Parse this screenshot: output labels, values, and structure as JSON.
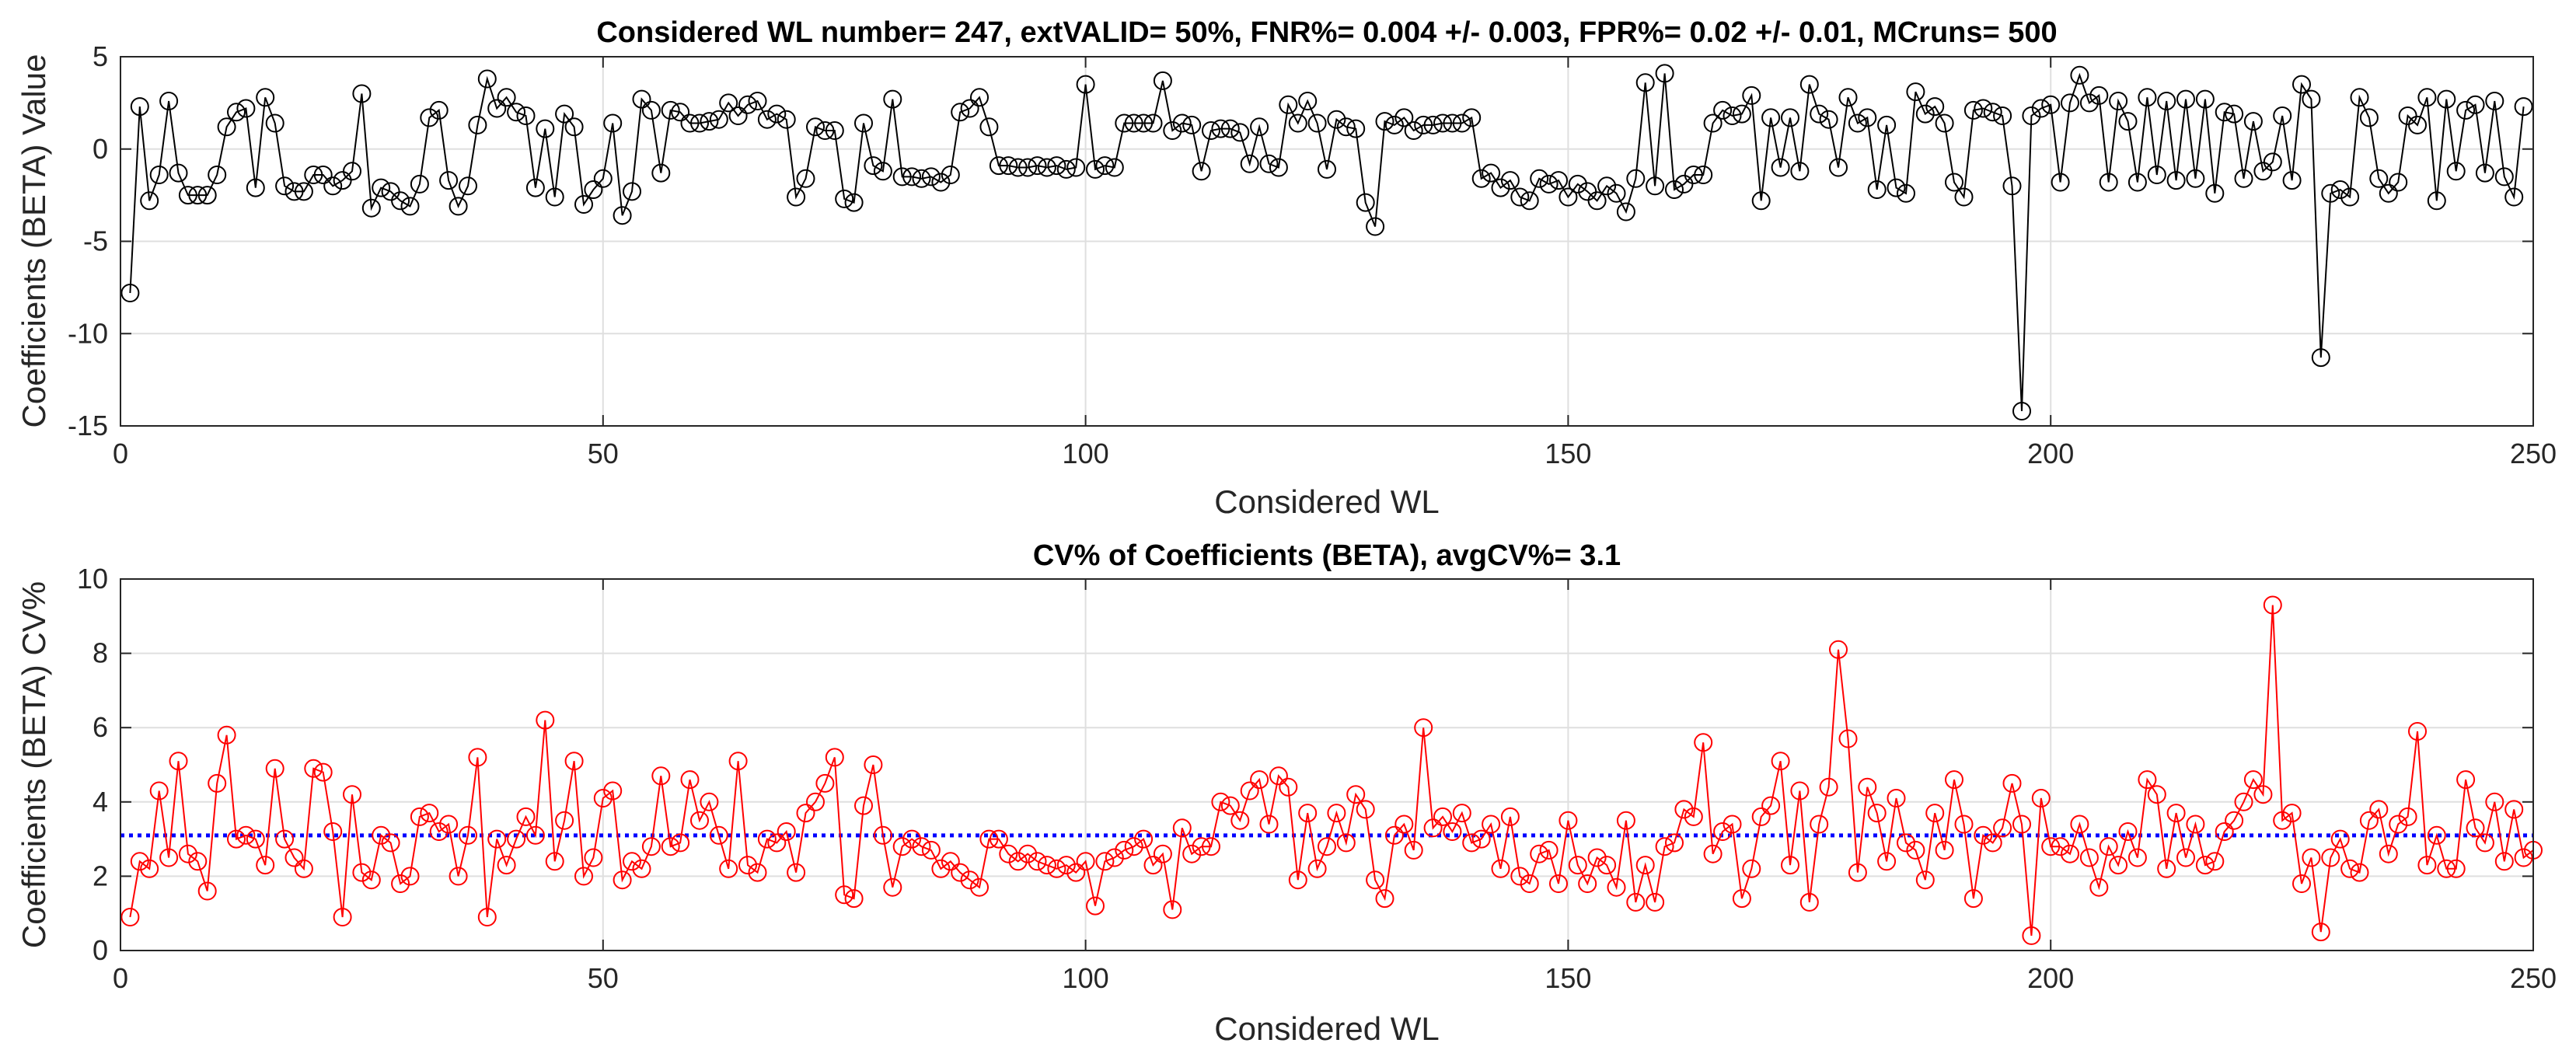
{
  "chart_data": [
    {
      "type": "line",
      "title": "Considered WL number= 247, extVALID= 50%, FNR%= 0.004 +/- 0.003, FPR%= 0.02 +/- 0.01, MCruns= 500",
      "xlabel": "Considered WL",
      "ylabel": "Coefficients (BETA) Value",
      "xlim": [
        0,
        250
      ],
      "ylim": [
        -15,
        5
      ],
      "xticks": [
        0,
        50,
        100,
        150,
        200,
        250
      ],
      "yticks": [
        -15,
        -10,
        -5,
        0,
        5
      ],
      "grid": true,
      "series": [
        {
          "name": "BETA",
          "color": "#000000",
          "marker": "circle-open",
          "x_start": 1,
          "values": [
            -7.8,
            2.3,
            -2.8,
            -1.4,
            2.6,
            -1.3,
            -2.5,
            -2.5,
            -2.5,
            -1.4,
            1.2,
            2.0,
            2.2,
            -2.1,
            2.8,
            1.4,
            -2.0,
            -2.3,
            -2.3,
            -1.4,
            -1.4,
            -2.0,
            -1.7,
            -1.2,
            3.0,
            -3.2,
            -2.1,
            -2.3,
            -2.8,
            -3.1,
            -1.9,
            1.7,
            2.1,
            -1.7,
            -3.1,
            -2.0,
            1.3,
            3.8,
            2.2,
            2.8,
            2.0,
            1.8,
            -2.1,
            1.1,
            -2.6,
            1.9,
            1.2,
            -3.0,
            -2.2,
            -1.6,
            1.4,
            -3.6,
            -2.3,
            2.7,
            2.1,
            -1.3,
            2.1,
            2.0,
            1.4,
            1.4,
            1.5,
            1.6,
            2.5,
            1.8,
            2.4,
            2.6,
            1.6,
            1.9,
            1.6,
            -2.6,
            -1.6,
            1.2,
            1.0,
            1.0,
            -2.7,
            -2.9,
            1.4,
            -0.9,
            -1.2,
            2.7,
            -1.5,
            -1.5,
            -1.6,
            -1.5,
            -1.8,
            -1.4,
            2.0,
            2.2,
            2.8,
            1.2,
            -0.9,
            -0.9,
            -1.0,
            -1.0,
            -0.9,
            -1.0,
            -0.9,
            -1.1,
            -1.0,
            3.5,
            -1.1,
            -0.9,
            -1.0,
            1.4,
            1.4,
            1.4,
            1.4,
            3.7,
            1.0,
            1.4,
            1.3,
            -1.2,
            1.0,
            1.1,
            1.1,
            0.9,
            -0.8,
            1.2,
            -0.8,
            -1.0,
            2.4,
            1.4,
            2.6,
            1.4,
            -1.1,
            1.6,
            1.2,
            1.1,
            -2.9,
            -4.2,
            1.5,
            1.3,
            1.7,
            1.0,
            1.3,
            1.3,
            1.4,
            1.4,
            1.4,
            1.7,
            -1.6,
            -1.3,
            -2.1,
            -1.7,
            -2.6,
            -2.8,
            -1.6,
            -1.9,
            -1.7,
            -2.6,
            -1.9,
            -2.3,
            -2.8,
            -2.0,
            -2.4,
            -3.4,
            -1.6,
            3.6,
            -2.0,
            4.1,
            -2.2,
            -1.9,
            -1.4,
            -1.4,
            1.4,
            2.1,
            1.8,
            1.9,
            2.9,
            -2.8,
            1.7,
            -1.0,
            1.7,
            -1.2,
            3.5,
            1.9,
            1.6,
            -1.0,
            2.8,
            1.4,
            1.7,
            -2.2,
            1.3,
            -2.1,
            -2.4,
            3.1,
            1.9,
            2.3,
            1.4,
            -1.8,
            -2.6,
            2.1,
            2.2,
            2.0,
            1.8,
            -2.0,
            -14.2,
            1.8,
            2.2,
            2.4,
            -1.8,
            2.5,
            4.0,
            2.5,
            2.9,
            -1.8,
            2.6,
            1.5,
            -1.8,
            2.8,
            -1.4,
            2.6,
            -1.7,
            2.7,
            -1.6,
            2.7,
            -2.4,
            2.0,
            1.9,
            -1.6,
            1.5,
            -1.2,
            -0.7,
            1.8,
            -1.7,
            3.5,
            2.7,
            -11.3,
            -2.4,
            -2.2,
            -2.6,
            2.8,
            1.7,
            -1.6,
            -2.4,
            -1.8,
            1.8,
            1.3,
            2.8,
            -2.8,
            2.7,
            -1.2,
            2.1,
            2.4,
            -1.3,
            2.6,
            -1.5,
            -2.6,
            2.3
          ]
        }
      ]
    },
    {
      "type": "line",
      "title": "CV% of Coefficients (BETA), avgCV%= 3.1",
      "xlabel": "Considered WL",
      "ylabel": "Coefficients (BETA) CV%",
      "xlim": [
        0,
        250
      ],
      "ylim": [
        0,
        10
      ],
      "xticks": [
        0,
        50,
        100,
        150,
        200,
        250
      ],
      "yticks": [
        0,
        2,
        4,
        6,
        8,
        10
      ],
      "grid": true,
      "reference_line": {
        "value": 3.1,
        "color": "#0000ff",
        "style": "dotted"
      },
      "series": [
        {
          "name": "CV%",
          "color": "#ff0000",
          "marker": "circle-open",
          "x_start": 1,
          "values": [
            0.9,
            2.4,
            2.2,
            4.3,
            2.5,
            5.1,
            2.6,
            2.4,
            1.6,
            4.5,
            5.8,
            3.0,
            3.1,
            3.0,
            2.3,
            4.9,
            3.0,
            2.5,
            2.2,
            4.9,
            4.8,
            3.2,
            0.9,
            4.2,
            2.1,
            1.9,
            3.1,
            2.9,
            1.8,
            2.0,
            3.6,
            3.7,
            3.2,
            3.4,
            2.0,
            3.1,
            5.2,
            0.9,
            3.0,
            2.3,
            3.0,
            3.6,
            3.1,
            6.2,
            2.4,
            3.5,
            5.1,
            2.0,
            2.5,
            4.1,
            4.3,
            1.9,
            2.4,
            2.2,
            2.8,
            4.7,
            2.8,
            2.9,
            4.6,
            3.5,
            4.0,
            3.1,
            2.2,
            5.1,
            2.3,
            2.1,
            3.0,
            2.9,
            3.2,
            2.1,
            3.7,
            4.0,
            4.5,
            5.2,
            1.5,
            1.4,
            3.9,
            5.0,
            3.1,
            1.7,
            2.8,
            3.0,
            2.8,
            2.7,
            2.2,
            2.4,
            2.1,
            1.9,
            1.7,
            3.0,
            3.0,
            2.6,
            2.4,
            2.6,
            2.4,
            2.3,
            2.2,
            2.3,
            2.1,
            2.4,
            1.2,
            2.4,
            2.5,
            2.7,
            2.8,
            3.0,
            2.3,
            2.6,
            1.1,
            3.3,
            2.6,
            2.8,
            2.8,
            4.0,
            3.9,
            3.5,
            4.3,
            4.6,
            3.4,
            4.7,
            4.4,
            1.9,
            3.7,
            2.2,
            2.8,
            3.7,
            2.9,
            4.2,
            3.8,
            1.9,
            1.4,
            3.1,
            3.4,
            2.7,
            6.0,
            3.3,
            3.6,
            3.2,
            3.7,
            2.9,
            3.0,
            3.4,
            2.2,
            3.6,
            2.0,
            1.8,
            2.6,
            2.7,
            1.8,
            3.5,
            2.3,
            1.8,
            2.5,
            2.3,
            1.7,
            3.5,
            1.3,
            2.3,
            1.3,
            2.8,
            2.9,
            3.8,
            3.6,
            5.6,
            2.6,
            3.2,
            3.4,
            1.4,
            2.2,
            3.6,
            3.9,
            5.1,
            2.3,
            4.3,
            1.3,
            3.4,
            4.4,
            8.1,
            5.7,
            2.1,
            4.4,
            3.7,
            2.4,
            4.1,
            2.9,
            2.7,
            1.9,
            3.7,
            2.7,
            4.6,
            3.4,
            1.4,
            3.1,
            2.9,
            3.3,
            4.5,
            3.4,
            0.4,
            4.1,
            2.8,
            2.8,
            2.6,
            3.4,
            2.5,
            1.7,
            2.8,
            2.3,
            3.2,
            2.5,
            4.6,
            4.2,
            2.2,
            3.7,
            2.5,
            3.4,
            2.3,
            2.4,
            3.2,
            3.5,
            4.0,
            4.6,
            4.2,
            9.3,
            3.5,
            3.7,
            1.8,
            2.5,
            0.5,
            2.5,
            3.0,
            2.2,
            2.1,
            3.5,
            3.8,
            2.6,
            3.4,
            3.6,
            5.9,
            2.3,
            3.1,
            2.2,
            2.2,
            4.6,
            3.3,
            2.9,
            4.0,
            2.4,
            3.8,
            2.5,
            2.7
          ]
        }
      ]
    }
  ]
}
